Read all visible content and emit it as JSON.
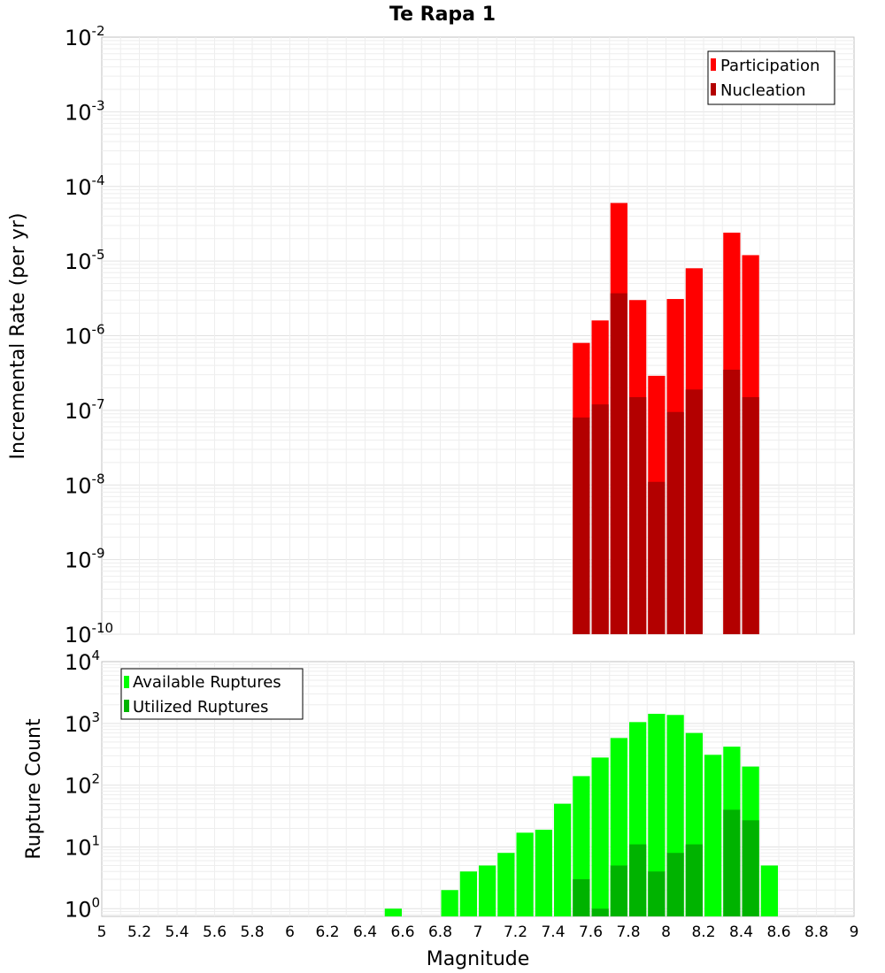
{
  "chart_data": [
    {
      "type": "bar",
      "title": "Te Rapa 1",
      "xlabel": "",
      "ylabel": "Incremental Rate (per yr)",
      "yscale": "log",
      "ylim": [
        1e-10,
        0.01
      ],
      "xlim": [
        5,
        9
      ],
      "grid": true,
      "legend_position": "top-right",
      "bar_width": 0.1,
      "x": [
        7.55,
        7.65,
        7.75,
        7.85,
        7.95,
        8.05,
        8.15,
        8.35,
        8.45
      ],
      "y_tick_labels": [
        {
          "base": "10",
          "exp": "-2"
        },
        {
          "base": "10",
          "exp": "-3"
        },
        {
          "base": "10",
          "exp": "-4"
        },
        {
          "base": "10",
          "exp": "-5"
        },
        {
          "base": "10",
          "exp": "-6"
        },
        {
          "base": "10",
          "exp": "-7"
        },
        {
          "base": "10",
          "exp": "-8"
        },
        {
          "base": "10",
          "exp": "-9"
        },
        {
          "base": "10",
          "exp": "-10"
        }
      ],
      "series": [
        {
          "name": "Participation",
          "color": "#ff0000",
          "values": [
            8e-07,
            1.6e-06,
            6e-05,
            3e-06,
            2.9e-07,
            3.1e-06,
            8e-06,
            2.4e-05,
            1.2e-05
          ]
        },
        {
          "name": "Nucleation",
          "color": "#b30000",
          "values": [
            8e-08,
            1.2e-07,
            3.7e-06,
            1.5e-07,
            1.1e-08,
            9.5e-08,
            1.9e-07,
            3.5e-07,
            1.5e-07
          ]
        }
      ]
    },
    {
      "type": "bar",
      "title": "",
      "xlabel": "Magnitude",
      "ylabel": "Rupture Count",
      "yscale": "log",
      "ylim": [
        0.75,
        10000
      ],
      "xlim": [
        5,
        9
      ],
      "grid": true,
      "legend_position": "top-left",
      "bar_width": 0.1,
      "x_ticks": [
        5,
        5.2,
        5.4,
        5.6,
        5.8,
        6,
        6.2,
        6.4,
        6.6,
        6.8,
        7,
        7.2,
        7.4,
        7.6,
        7.8,
        8,
        8.2,
        8.4,
        8.6,
        8.8,
        9
      ],
      "x_tick_labels": [
        "5",
        "5.2",
        "5.4",
        "5.6",
        "5.8",
        "6",
        "6.2",
        "6.4",
        "6.6",
        "6.8",
        "7",
        "7.2",
        "7.4",
        "7.6",
        "7.8",
        "8",
        "8.2",
        "8.4",
        "8.6",
        "8.8",
        "9"
      ],
      "y_tick_labels": [
        {
          "base": "10",
          "exp": "4"
        },
        {
          "base": "10",
          "exp": "3"
        },
        {
          "base": "10",
          "exp": "2"
        },
        {
          "base": "10",
          "exp": "1"
        },
        {
          "base": "10",
          "exp": "0"
        }
      ],
      "series": [
        {
          "name": "Available Ruptures",
          "color": "#00ff00",
          "x": [
            6.55,
            6.85,
            6.95,
            7.05,
            7.15,
            7.25,
            7.35,
            7.45,
            7.55,
            7.65,
            7.75,
            7.85,
            7.95,
            8.05,
            8.15,
            8.25,
            8.35,
            8.45,
            8.55
          ],
          "values": [
            1,
            2,
            4,
            5,
            8,
            17,
            19,
            50,
            140,
            280,
            580,
            1050,
            1430,
            1370,
            700,
            310,
            420,
            200,
            5
          ]
        },
        {
          "name": "Utilized Ruptures",
          "color": "#00b300",
          "x": [
            7.55,
            7.65,
            7.75,
            7.85,
            7.95,
            8.05,
            8.15,
            8.35,
            8.45
          ],
          "values": [
            3,
            1,
            5,
            11,
            4,
            8,
            11,
            40,
            27
          ]
        }
      ]
    }
  ]
}
